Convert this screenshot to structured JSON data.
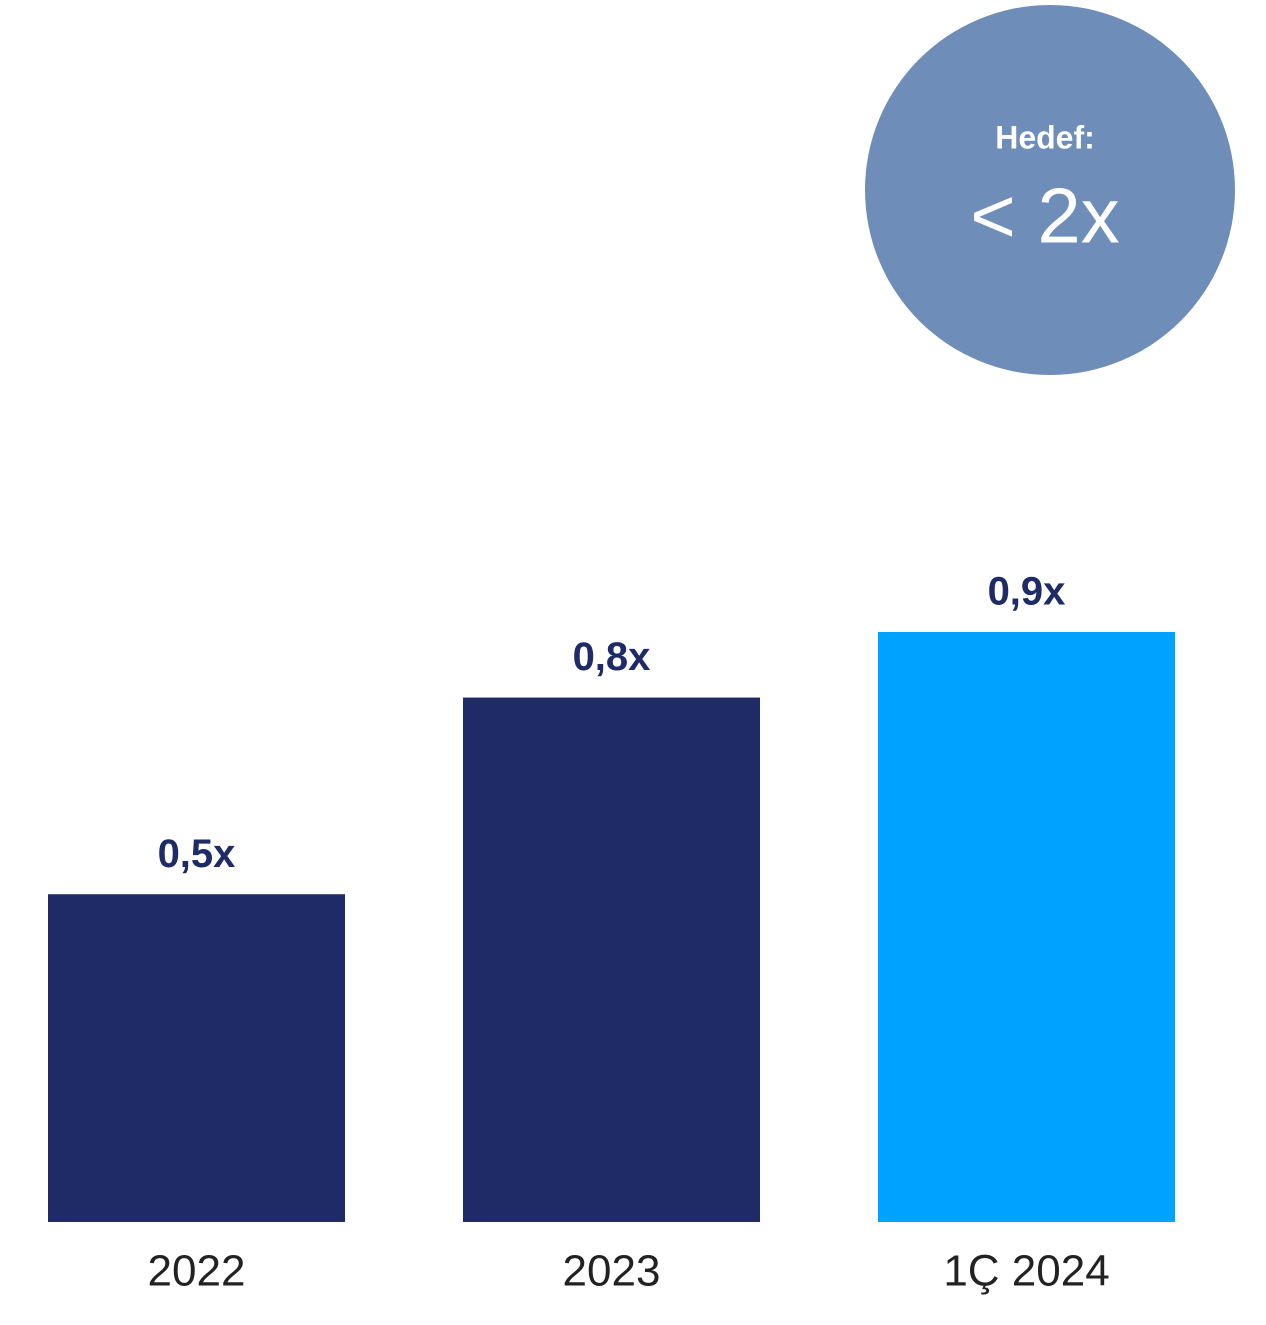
{
  "chart_data": {
    "type": "bar",
    "categories": [
      "2022",
      "2023",
      "1Ç 2024"
    ],
    "values": [
      0.5,
      0.8,
      0.9
    ],
    "value_labels": [
      "0,5x",
      "0,8x",
      "0,9x"
    ],
    "colors": [
      "#1e2b66",
      "#1e2b66",
      "#00a2ff"
    ],
    "annotation": {
      "label": "Hedef:",
      "text": "< 2x",
      "color": "#6e8db8"
    }
  }
}
